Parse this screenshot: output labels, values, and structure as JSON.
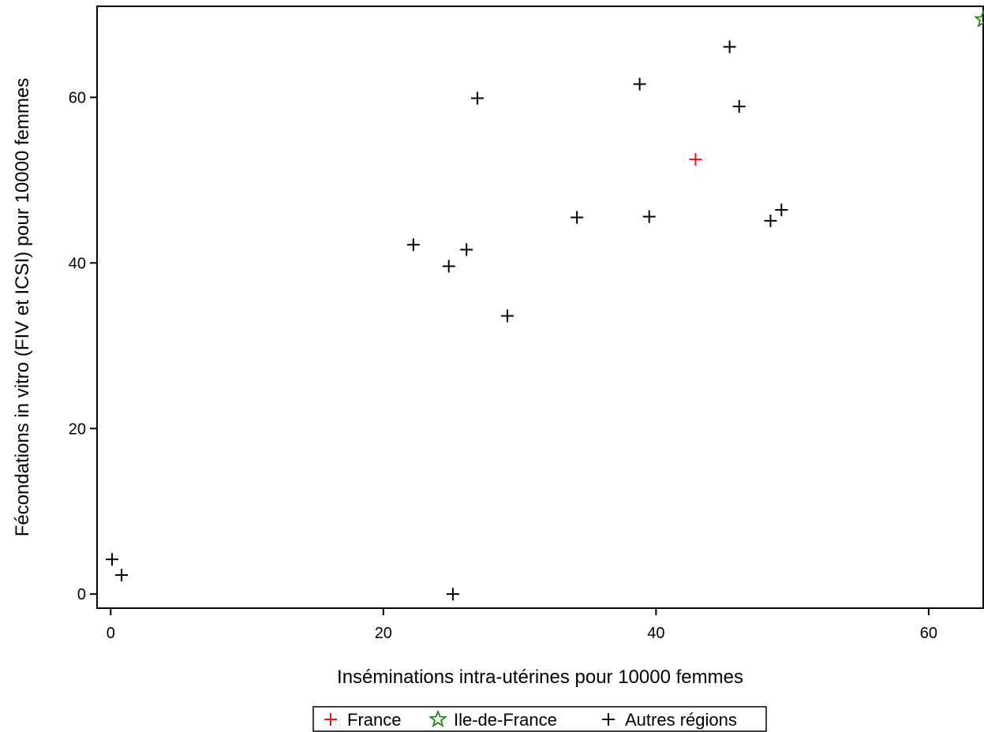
{
  "chart_data": {
    "type": "scatter",
    "title": "",
    "xlabel": "Inséminations intra-utérines pour 10000 femmes",
    "ylabel": "Fécondations in vitro (FIV et ICSI) pour 10000 femmes",
    "xlim": [
      -1,
      64
    ],
    "ylim": [
      -1.7,
      71
    ],
    "xticks": [
      0,
      20,
      40,
      60
    ],
    "yticks": [
      0,
      20,
      40,
      60
    ],
    "grid": false,
    "legend_position": "bottom-center",
    "series": [
      {
        "name": "France",
        "marker": "plus",
        "color": "#e8121b",
        "points": [
          [
            42.9,
            52.5
          ]
        ]
      },
      {
        "name": "Ile-de-France",
        "marker": "star",
        "color": "#1a8a1a",
        "points": [
          [
            64.0,
            69.4
          ]
        ]
      },
      {
        "name": "Autres régions",
        "marker": "plus",
        "color": "#000000",
        "points": [
          [
            0.1,
            4.2
          ],
          [
            0.8,
            2.3
          ],
          [
            25.1,
            0.0
          ],
          [
            22.2,
            42.2
          ],
          [
            24.8,
            39.6
          ],
          [
            26.1,
            41.6
          ],
          [
            29.1,
            33.6
          ],
          [
            26.9,
            59.9
          ],
          [
            34.2,
            45.5
          ],
          [
            38.8,
            61.6
          ],
          [
            39.5,
            45.6
          ],
          [
            45.4,
            66.1
          ],
          [
            46.1,
            58.9
          ],
          [
            48.4,
            45.1
          ],
          [
            49.2,
            46.4
          ]
        ]
      }
    ]
  }
}
